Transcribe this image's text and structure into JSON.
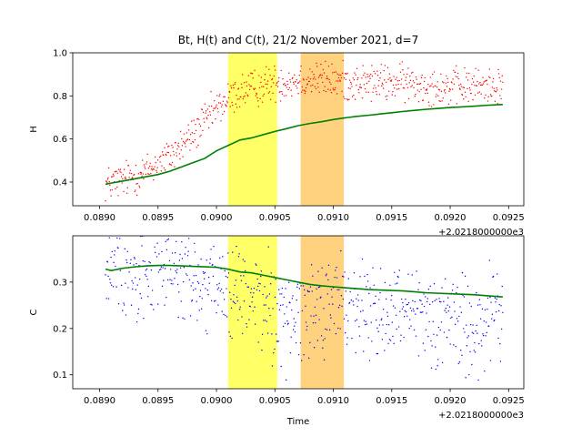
{
  "chart_data": [
    {
      "type": "scatter",
      "panel": "top",
      "title": "Bt, H(t) and C(t), 21/2 November 2021, d=7",
      "xlabel": "",
      "ylabel": "H",
      "x_offset_label": "+2.0218000000e3",
      "xlim": [
        0.08877,
        0.09263
      ],
      "ylim": [
        0.29,
        1.0
      ],
      "xticks": [
        0.089,
        0.0895,
        0.09,
        0.0905,
        0.091,
        0.0915,
        0.092,
        0.0925
      ],
      "xtick_labels": [
        "0.0890",
        "0.0895",
        "0.0900",
        "0.0905",
        "0.0910",
        "0.0915",
        "0.0920",
        "0.0925"
      ],
      "yticks": [
        0.4,
        0.6,
        0.8,
        1.0
      ],
      "ytick_labels": [
        "0.4",
        "0.6",
        "0.8",
        "1.0"
      ],
      "grid": false,
      "shaded_regions": [
        {
          "x0": 0.0901,
          "x1": 0.09052,
          "color": "#ffff66"
        },
        {
          "x0": 0.09072,
          "x1": 0.09109,
          "color": "#ffd27f"
        }
      ],
      "scatter_color": "#ff0000",
      "scatter_profile": [
        [
          0.08905,
          0.39
        ],
        [
          0.0892,
          0.41
        ],
        [
          0.0894,
          0.45
        ],
        [
          0.0896,
          0.52
        ],
        [
          0.0898,
          0.62
        ],
        [
          0.09,
          0.74
        ],
        [
          0.0902,
          0.82
        ],
        [
          0.0905,
          0.86
        ],
        [
          0.0908,
          0.88
        ],
        [
          0.0912,
          0.86
        ],
        [
          0.0916,
          0.86
        ],
        [
          0.092,
          0.84
        ],
        [
          0.09245,
          0.85
        ]
      ],
      "scatter_spread": 0.07,
      "series": [
        {
          "type": "line",
          "color": "#008000",
          "x": [
            0.08905,
            0.0891,
            0.0892,
            0.0893,
            0.0894,
            0.0895,
            0.0896,
            0.0897,
            0.0898,
            0.0899,
            0.09,
            0.0901,
            0.0902,
            0.0903,
            0.0904,
            0.0905,
            0.0906,
            0.0907,
            0.0908,
            0.0909,
            0.091,
            0.0911,
            0.0912,
            0.0913,
            0.0914,
            0.0915,
            0.0916,
            0.0917,
            0.0918,
            0.0919,
            0.092,
            0.0921,
            0.0922,
            0.0923,
            0.0924,
            0.09245
          ],
          "y": [
            0.39,
            0.395,
            0.405,
            0.415,
            0.425,
            0.435,
            0.45,
            0.47,
            0.49,
            0.51,
            0.545,
            0.57,
            0.595,
            0.605,
            0.62,
            0.635,
            0.648,
            0.662,
            0.672,
            0.68,
            0.69,
            0.698,
            0.705,
            0.71,
            0.716,
            0.722,
            0.728,
            0.733,
            0.738,
            0.742,
            0.746,
            0.749,
            0.752,
            0.756,
            0.759,
            0.76
          ]
        }
      ]
    },
    {
      "type": "scatter",
      "panel": "bottom",
      "title": "",
      "xlabel": "Time",
      "ylabel": "C",
      "x_offset_label": "+2.0218000000e3",
      "xlim": [
        0.08877,
        0.09263
      ],
      "ylim": [
        0.07,
        0.4
      ],
      "xticks": [
        0.089,
        0.0895,
        0.09,
        0.0905,
        0.091,
        0.0915,
        0.092,
        0.0925
      ],
      "xtick_labels": [
        "0.0890",
        "0.0895",
        "0.0900",
        "0.0905",
        "0.0910",
        "0.0915",
        "0.0920",
        "0.0925"
      ],
      "yticks": [
        0.1,
        0.2,
        0.3
      ],
      "ytick_labels": [
        "0.1",
        "0.2",
        "0.3"
      ],
      "grid": false,
      "shaded_regions": [
        {
          "x0": 0.0901,
          "x1": 0.09052,
          "color": "#ffff66"
        },
        {
          "x0": 0.09072,
          "x1": 0.09109,
          "color": "#ffd27f"
        }
      ],
      "scatter_color": "#0000ff",
      "scatter_profile": [
        [
          0.08905,
          0.33
        ],
        [
          0.0892,
          0.34
        ],
        [
          0.0895,
          0.34
        ],
        [
          0.0898,
          0.3
        ],
        [
          0.09,
          0.28
        ],
        [
          0.0903,
          0.27
        ],
        [
          0.0906,
          0.22
        ],
        [
          0.0909,
          0.26
        ],
        [
          0.0912,
          0.25
        ],
        [
          0.0916,
          0.22
        ],
        [
          0.092,
          0.23
        ],
        [
          0.0922,
          0.2
        ],
        [
          0.09245,
          0.24
        ]
      ],
      "scatter_spread": 0.09,
      "series": [
        {
          "type": "line",
          "color": "#008000",
          "x": [
            0.08905,
            0.0891,
            0.0892,
            0.0893,
            0.0894,
            0.0895,
            0.0896,
            0.0897,
            0.0898,
            0.0899,
            0.09,
            0.0901,
            0.0902,
            0.0903,
            0.0904,
            0.0905,
            0.0906,
            0.0907,
            0.0908,
            0.0909,
            0.091,
            0.0911,
            0.0912,
            0.0913,
            0.0914,
            0.0915,
            0.0916,
            0.0917,
            0.0918,
            0.0919,
            0.092,
            0.0921,
            0.0922,
            0.0923,
            0.0924,
            0.09245
          ],
          "y": [
            0.328,
            0.325,
            0.33,
            0.333,
            0.335,
            0.336,
            0.336,
            0.335,
            0.334,
            0.333,
            0.332,
            0.328,
            0.322,
            0.32,
            0.315,
            0.31,
            0.305,
            0.3,
            0.295,
            0.292,
            0.29,
            0.288,
            0.286,
            0.284,
            0.283,
            0.282,
            0.281,
            0.279,
            0.277,
            0.276,
            0.275,
            0.274,
            0.273,
            0.271,
            0.269,
            0.268
          ]
        }
      ]
    }
  ]
}
